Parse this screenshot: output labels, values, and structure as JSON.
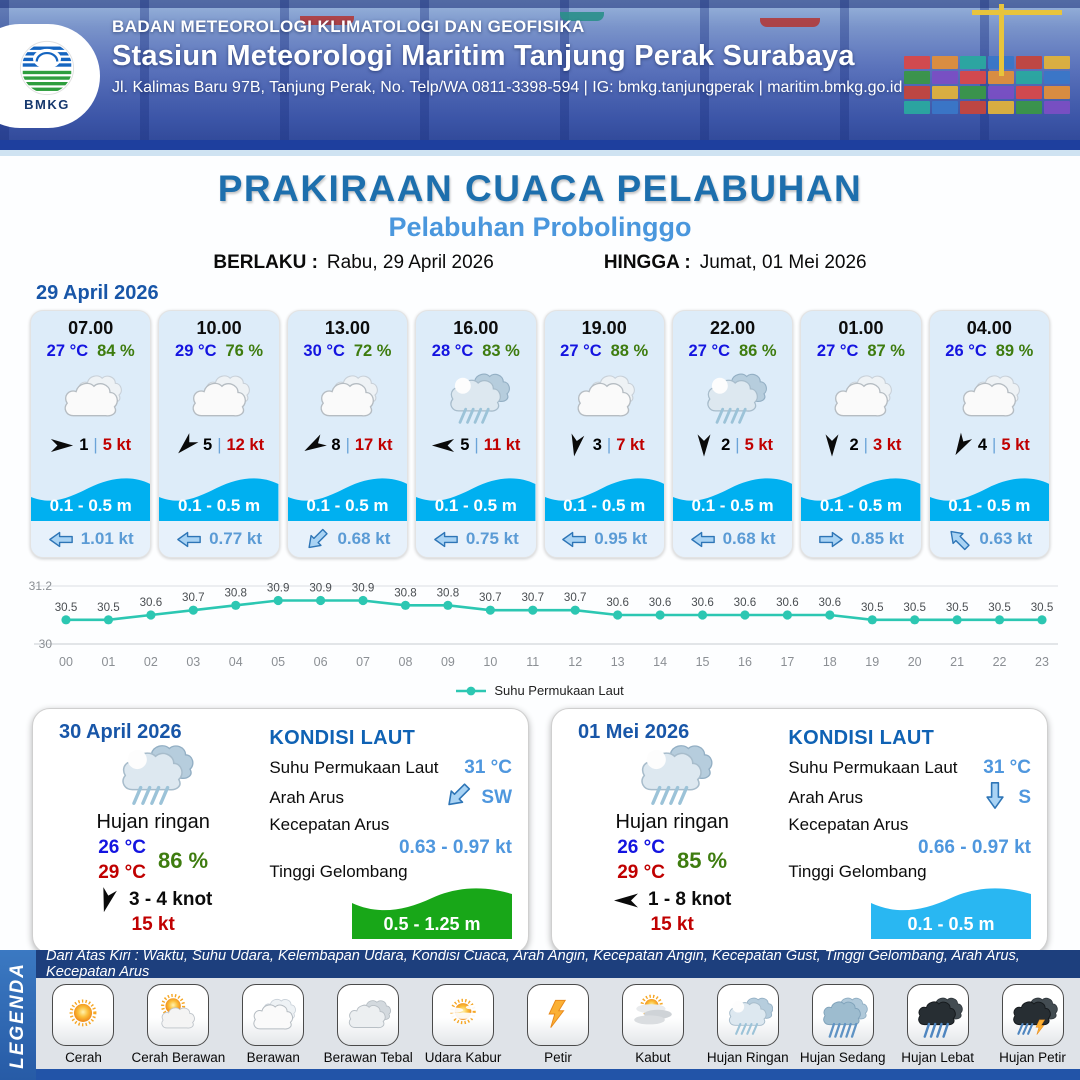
{
  "header": {
    "agency": "BADAN METEOROLOGI KLIMATOLOGI DAN GEOFISIKA",
    "station": "Stasiun Meteorologi Maritim Tanjung Perak Surabaya",
    "address": "Jl. Kalimas Baru 97B, Tanjung Perak, No. Telp/WA 0811-3398-594 | IG: bmkg.tanjungperak | maritim.bmkg.go.id",
    "logo_text": "BMKG"
  },
  "title": {
    "main": "PRAKIRAAN CUACA PELABUHAN",
    "subtitle": "Pelabuhan Probolinggo",
    "berlaku_label": "BERLAKU :",
    "berlaku_value": "Rabu, 29 April 2026",
    "hingga_label": "HINGGA :",
    "hingga_value": "Jumat, 01 Mei 2026"
  },
  "forecast": {
    "date": "29 April 2026",
    "cards": [
      {
        "time": "07.00",
        "temp": "27 °C",
        "humidity": "84 %",
        "icon": "berawan",
        "wind_dir_deg": 0,
        "wind": "1",
        "gust": "5 kt",
        "wave": "0.1 - 0.5 m",
        "current_dir": "left",
        "current": "1.01 kt"
      },
      {
        "time": "10.00",
        "temp": "29 °C",
        "humidity": "76 %",
        "icon": "berawan",
        "wind_dir_deg": 135,
        "wind": "5",
        "gust": "12 kt",
        "wave": "0.1 - 0.5 m",
        "current_dir": "left",
        "current": "0.77 kt"
      },
      {
        "time": "13.00",
        "temp": "30 °C",
        "humidity": "72 %",
        "icon": "berawan",
        "wind_dir_deg": 150,
        "wind": "8",
        "gust": "17 kt",
        "wave": "0.1 - 0.5 m",
        "current_dir": "down-left",
        "current": "0.68 kt"
      },
      {
        "time": "16.00",
        "temp": "28 °C",
        "humidity": "83 %",
        "icon": "hujan-ringan",
        "wind_dir_deg": 180,
        "wind": "5",
        "gust": "11 kt",
        "wave": "0.1 - 0.5 m",
        "current_dir": "left",
        "current": "0.75 kt"
      },
      {
        "time": "19.00",
        "temp": "27 °C",
        "humidity": "88 %",
        "icon": "berawan",
        "wind_dir_deg": 100,
        "wind": "3",
        "gust": "7 kt",
        "wave": "0.1 - 0.5 m",
        "current_dir": "left",
        "current": "0.95 kt"
      },
      {
        "time": "22.00",
        "temp": "27 °C",
        "humidity": "86 %",
        "icon": "hujan-ringan",
        "wind_dir_deg": 90,
        "wind": "2",
        "gust": "5 kt",
        "wave": "0.1 - 0.5 m",
        "current_dir": "left",
        "current": "0.68 kt"
      },
      {
        "time": "01.00",
        "temp": "27 °C",
        "humidity": "87 %",
        "icon": "berawan",
        "wind_dir_deg": 90,
        "wind": "2",
        "gust": "3 kt",
        "wave": "0.1 - 0.5 m",
        "current_dir": "right",
        "current": "0.85 kt"
      },
      {
        "time": "04.00",
        "temp": "26 °C",
        "humidity": "89 %",
        "icon": "berawan",
        "wind_dir_deg": 120,
        "wind": "4",
        "gust": "5 kt",
        "wave": "0.1 - 0.5 m",
        "current_dir": "up-left",
        "current": "0.63 kt"
      }
    ]
  },
  "chart_data": {
    "type": "line",
    "title": "",
    "x": [
      "00",
      "01",
      "02",
      "03",
      "04",
      "05",
      "06",
      "07",
      "08",
      "09",
      "10",
      "11",
      "12",
      "13",
      "14",
      "15",
      "16",
      "17",
      "18",
      "19",
      "20",
      "21",
      "22",
      "23"
    ],
    "values": [
      30.5,
      30.5,
      30.6,
      30.7,
      30.8,
      30.9,
      30.9,
      30.9,
      30.8,
      30.8,
      30.7,
      30.7,
      30.7,
      30.6,
      30.6,
      30.6,
      30.6,
      30.6,
      30.6,
      30.5,
      30.5,
      30.5,
      30.5,
      30.5
    ],
    "ylim": [
      30,
      31.2
    ],
    "yticks": [
      "31.2",
      "30"
    ],
    "legend": "Suhu Permukaan Laut",
    "legend_position": "bottom",
    "grid": true,
    "line_color": "#2cc7b2"
  },
  "daily": [
    {
      "date": "30 April 2026",
      "condition": "Hujan ringan",
      "icon": "hujan-ringan",
      "temp_min": "26 °C",
      "temp_max": "29 °C",
      "humidity": "86 %",
      "wind_dir_deg": 105,
      "wind_range": "3 - 4 knot",
      "gust": "15 kt",
      "sea": {
        "title": "KONDISI LAUT",
        "sst_label": "Suhu Permukaan Laut",
        "sst": "31 °C",
        "current_dir_label": "Arah Arus",
        "current_dir": "SW",
        "current_arrow": "down-left",
        "current_speed_label": "Kecepatan Arus",
        "current_speed": "0.63 - 0.97 kt",
        "wave_label": "Tinggi Gelombang",
        "wave": "0.5 - 1.25 m",
        "wave_color": "#18a718"
      }
    },
    {
      "date": "01 Mei 2026",
      "condition": "Hujan ringan",
      "icon": "hujan-ringan",
      "temp_min": "26 °C",
      "temp_max": "29 °C",
      "humidity": "85 %",
      "wind_dir_deg": 180,
      "wind_range": "1 - 8 knot",
      "gust": "15 kt",
      "sea": {
        "title": "KONDISI LAUT",
        "sst_label": "Suhu Permukaan Laut",
        "sst": "31 °C",
        "current_dir_label": "Arah Arus",
        "current_dir": "S",
        "current_arrow": "down",
        "current_speed_label": "Kecepatan Arus",
        "current_speed": "0.66 - 0.97 kt",
        "wave_label": "Tinggi Gelombang",
        "wave": "0.1 - 0.5 m",
        "wave_color": "#29b7f2"
      }
    }
  ],
  "legend": {
    "vertical_label": "LEGENDA",
    "note": "Dari Atas Kiri : Waktu, Suhu Udara, Kelembapan Udara, Kondisi Cuaca, Arah Angin, Kecepatan Angin, Kecepatan Gust, Tinggi Gelombang, Arah Arus, Kecepatan Arus",
    "items": [
      {
        "label": "Cerah",
        "icon": "cerah"
      },
      {
        "label": "Cerah Berawan",
        "icon": "cerah-berawan"
      },
      {
        "label": "Berawan",
        "icon": "berawan"
      },
      {
        "label": "Berawan Tebal",
        "icon": "berawan-tebal"
      },
      {
        "label": "Udara Kabur",
        "icon": "udara-kabur"
      },
      {
        "label": "Petir",
        "icon": "petir"
      },
      {
        "label": "Kabut",
        "icon": "kabut"
      },
      {
        "label": "Hujan Ringan",
        "icon": "hujan-ringan"
      },
      {
        "label": "Hujan Sedang",
        "icon": "hujan-sedang"
      },
      {
        "label": "Hujan Lebat",
        "icon": "hujan-lebat"
      },
      {
        "label": "Hujan Petir",
        "icon": "hujan-petir"
      }
    ]
  },
  "colors": {
    "accent_blue": "#1d6fad",
    "light_blue": "#4a97dd",
    "temp_blue": "#1414e0",
    "humidity_green": "#3e7c0f",
    "gust_red": "#c00000",
    "wave_cyan": "#00b0f0",
    "current_blue": "#5b9bd5",
    "chart_teal": "#2cc7b2",
    "navy": "#1d3f7d"
  }
}
